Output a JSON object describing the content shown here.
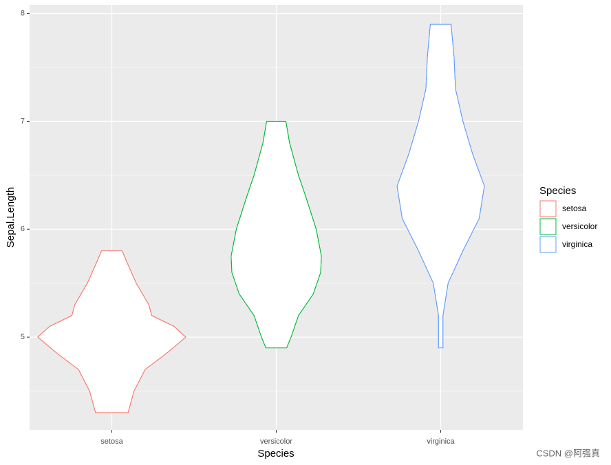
{
  "chart_data": {
    "type": "violin",
    "x_label": "Species",
    "y_label": "Sepal.Length",
    "legend_title": "Species",
    "legend_position": "right",
    "categories": [
      "setosa",
      "versicolor",
      "virginica"
    ],
    "ylim": [
      4.14,
      8.08
    ],
    "yticks": [
      5,
      6,
      7,
      8
    ],
    "yminor": [
      4.5,
      5.5,
      6.5,
      7.5
    ],
    "grid": true,
    "series": [
      {
        "name": "setosa",
        "color": "#f8766d",
        "y": [
          4.3,
          4.5,
          4.7,
          4.85,
          5.0,
          5.1,
          5.2,
          5.3,
          5.5,
          5.7,
          5.8
        ],
        "width": [
          0.22,
          0.3,
          0.45,
          0.74,
          1.0,
          0.84,
          0.54,
          0.5,
          0.33,
          0.2,
          0.14
        ]
      },
      {
        "name": "versicolor",
        "color": "#00ba38",
        "y": [
          4.9,
          5.0,
          5.2,
          5.4,
          5.6,
          5.75,
          6.0,
          6.3,
          6.5,
          6.8,
          7.0
        ],
        "width": [
          0.14,
          0.2,
          0.3,
          0.5,
          0.6,
          0.61,
          0.54,
          0.4,
          0.3,
          0.18,
          0.13
        ]
      },
      {
        "name": "virginica",
        "color": "#619cff",
        "y": [
          4.9,
          5.2,
          5.5,
          5.8,
          6.1,
          6.4,
          6.7,
          7.0,
          7.3,
          7.6,
          7.9
        ],
        "width": [
          0.03,
          0.03,
          0.1,
          0.3,
          0.52,
          0.59,
          0.43,
          0.3,
          0.2,
          0.18,
          0.14
        ]
      }
    ]
  },
  "watermark": "CSDN @阿强真"
}
